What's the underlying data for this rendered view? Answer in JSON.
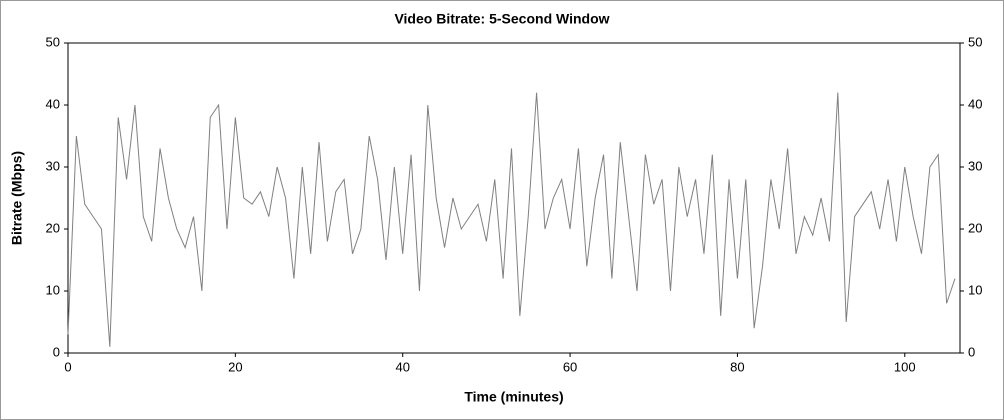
{
  "chart_data": {
    "type": "line",
    "title": "Video Bitrate: 5-Second Window",
    "x_label": "Time (minutes)",
    "y_label": "Bitrate (Mbps)",
    "x": [
      0,
      1,
      2,
      3,
      4,
      5,
      6,
      7,
      8,
      9,
      10,
      11,
      12,
      13,
      14,
      15,
      16,
      17,
      18,
      19,
      20,
      21,
      22,
      23,
      24,
      25,
      26,
      27,
      28,
      29,
      30,
      31,
      32,
      33,
      34,
      35,
      36,
      37,
      38,
      39,
      40,
      41,
      42,
      43,
      44,
      45,
      46,
      47,
      48,
      49,
      50,
      51,
      52,
      53,
      54,
      55,
      56,
      57,
      58,
      59,
      60,
      61,
      62,
      63,
      64,
      65,
      66,
      67,
      68,
      69,
      70,
      71,
      72,
      73,
      74,
      75,
      76,
      77,
      78,
      79,
      80,
      81,
      82,
      83,
      84,
      85,
      86,
      87,
      88,
      89,
      90,
      91,
      92,
      93,
      94,
      95,
      96,
      97,
      98,
      99,
      100,
      101,
      102,
      103,
      104,
      105,
      106
    ],
    "series": [
      {
        "name": "Bitrate",
        "color": "#808080",
        "values": [
          3,
          35,
          24,
          22,
          20,
          1,
          38,
          28,
          40,
          22,
          18,
          33,
          25,
          20,
          17,
          22,
          10,
          38,
          40,
          20,
          38,
          25,
          24,
          26,
          22,
          30,
          25,
          12,
          30,
          16,
          34,
          18,
          26,
          28,
          16,
          20,
          35,
          28,
          15,
          30,
          16,
          32,
          10,
          40,
          25,
          17,
          25,
          20,
          22,
          24,
          18,
          28,
          12,
          33,
          6,
          22,
          42,
          20,
          25,
          28,
          20,
          33,
          14,
          25,
          32,
          12,
          34,
          22,
          10,
          32,
          24,
          28,
          10,
          30,
          22,
          28,
          16,
          32,
          6,
          28,
          12,
          28,
          4,
          14,
          28,
          20,
          33,
          16,
          22,
          19,
          25,
          18,
          42,
          5,
          22,
          24,
          26,
          20,
          28,
          18,
          30,
          22,
          16,
          30,
          32,
          8,
          12
        ]
      }
    ],
    "xlim": [
      0,
      106.6
    ],
    "ylim": [
      0,
      50
    ],
    "xticks": [
      0,
      20,
      40,
      60,
      80,
      100
    ],
    "yticks": [
      0,
      10,
      20,
      30,
      40,
      50
    ]
  }
}
